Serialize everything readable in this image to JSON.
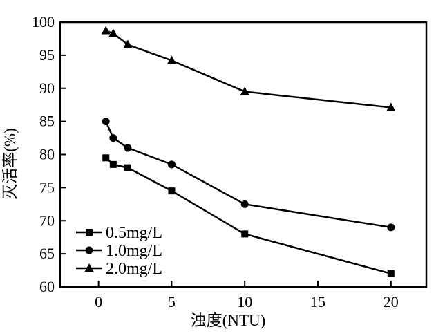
{
  "figure": {
    "background": "#ffffff",
    "ink_color": "#000000"
  },
  "chart_data": {
    "type": "line",
    "title": "",
    "xlabel": "浊度(NTU)",
    "ylabel": "灭活率(%)",
    "x": [
      0.5,
      1,
      2,
      5,
      10,
      20
    ],
    "x_ticks": [
      0,
      5,
      10,
      15,
      20
    ],
    "y_ticks": [
      60,
      65,
      70,
      75,
      80,
      85,
      90,
      95,
      100
    ],
    "xlim": [
      -2.63,
      22.42
    ],
    "ylim": [
      60,
      100
    ],
    "grid": false,
    "frame": true,
    "tick_direction": "in",
    "legend_position": "lower-left-inside",
    "series": [
      {
        "name": "0.5mg/L",
        "marker": "square",
        "color": "#000000",
        "values": [
          79.5,
          78.5,
          78.0,
          74.5,
          68.0,
          62.0
        ]
      },
      {
        "name": "1.0mg/L",
        "marker": "circle",
        "color": "#000000",
        "values": [
          85.0,
          82.5,
          81.0,
          78.5,
          72.5,
          69.0
        ]
      },
      {
        "name": "2.0mg/L",
        "marker": "triangle",
        "color": "#000000",
        "values": [
          98.7,
          98.3,
          96.6,
          94.2,
          89.5,
          87.1
        ]
      }
    ]
  }
}
